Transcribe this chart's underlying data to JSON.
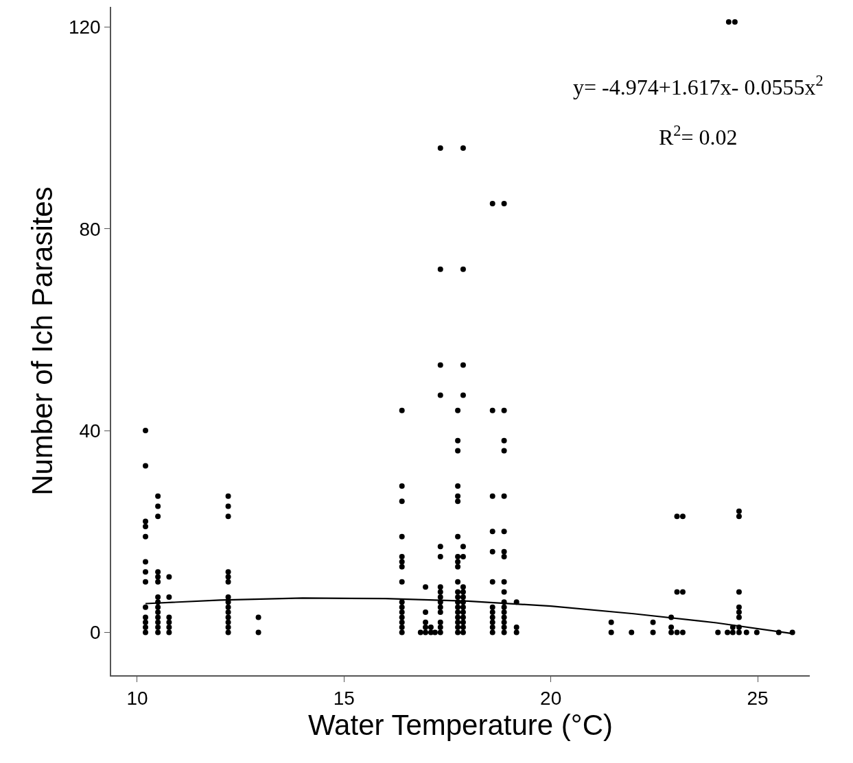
{
  "chart_data": {
    "type": "scatter",
    "xlabel": "Water Temperature (°C)",
    "ylabel": "Number of Ich Parasites",
    "annotations": [
      "y= -4.974+1.617x- 0.0555x$^{2}$",
      "R$^{2}$= 0.02"
    ],
    "xlim": [
      9.37,
      26.26
    ],
    "ylim": [
      -8.5,
      124
    ],
    "xticks": [
      10,
      15,
      20,
      25
    ],
    "yticks": [
      0,
      40,
      80,
      120
    ],
    "series": [
      {
        "color": "#000000",
        "marker": "circle",
        "x": [
          10.2,
          10.2,
          10.2,
          10.2,
          10.2,
          10.2,
          10.2,
          10.2,
          10.2,
          10.2,
          10.2,
          10.2,
          10.2,
          10.5,
          10.5,
          10.5,
          10.5,
          10.5,
          10.5,
          10.5,
          10.5,
          10.5,
          10.5,
          10.5,
          10.5,
          10.5,
          10.5,
          10.77,
          10.77,
          10.77,
          10.77,
          10.77,
          10.77,
          12.2,
          12.2,
          12.2,
          12.2,
          12.2,
          12.2,
          12.2,
          12.2,
          12.2,
          12.2,
          12.2,
          12.2,
          12.2,
          12.2,
          12.93,
          12.93,
          16.4,
          16.4,
          16.4,
          16.4,
          16.4,
          16.4,
          16.4,
          16.4,
          16.4,
          16.4,
          16.4,
          16.4,
          16.4,
          16.4,
          16.4,
          16.85,
          16.97,
          16.97,
          16.97,
          16.97,
          16.97,
          17.1,
          17.1,
          17.2,
          17.33,
          17.33,
          17.33,
          17.33,
          17.33,
          17.33,
          17.33,
          17.33,
          17.33,
          17.33,
          17.33,
          17.33,
          17.33,
          17.33,
          17.33,
          17.75,
          17.75,
          17.75,
          17.75,
          17.75,
          17.75,
          17.75,
          17.75,
          17.75,
          17.75,
          17.75,
          17.75,
          17.75,
          17.75,
          17.75,
          17.75,
          17.75,
          17.75,
          17.75,
          17.75,
          17.88,
          17.88,
          17.88,
          17.88,
          17.88,
          17.88,
          17.88,
          17.88,
          17.88,
          17.88,
          17.88,
          17.88,
          17.88,
          17.88,
          17.88,
          17.88,
          18.59,
          18.59,
          18.59,
          18.59,
          18.59,
          18.59,
          18.59,
          18.59,
          18.59,
          18.59,
          18.59,
          18.59,
          18.87,
          18.87,
          18.87,
          18.87,
          18.87,
          18.87,
          18.87,
          18.87,
          18.87,
          18.87,
          18.87,
          18.87,
          18.87,
          18.87,
          18.87,
          18.87,
          18.87,
          19.17,
          19.17,
          19.17,
          21.46,
          21.46,
          21.95,
          22.47,
          22.47,
          22.91,
          22.91,
          22.91,
          23.05,
          23.05,
          23.05,
          23.19,
          23.19,
          23.19,
          24.04,
          24.27,
          24.3,
          24.45,
          24.4,
          24.4,
          24.55,
          24.55,
          24.55,
          24.55,
          24.55,
          24.55,
          24.55,
          24.55,
          24.73,
          24.98,
          25.51,
          25.84
        ],
        "values": [
          40,
          33,
          22,
          21,
          19,
          14,
          12,
          10,
          5,
          3,
          2,
          1,
          0,
          27,
          25,
          23,
          12,
          11,
          10,
          7,
          6,
          5,
          4,
          3,
          2,
          1,
          0,
          11,
          7,
          3,
          2,
          1,
          0,
          27,
          25,
          23,
          12,
          11,
          10,
          7,
          6,
          5,
          4,
          3,
          2,
          1,
          0,
          3,
          0,
          44,
          29,
          26,
          19,
          15,
          14,
          13,
          10,
          6,
          5,
          4,
          3,
          2,
          1,
          0,
          0,
          9,
          4,
          2,
          1,
          0,
          1,
          0,
          0,
          96,
          72,
          53,
          47,
          17,
          15,
          9,
          8,
          7,
          6,
          5,
          4,
          2,
          1,
          0,
          44,
          38,
          36,
          29,
          27,
          26,
          19,
          15,
          14,
          13,
          10,
          8,
          7,
          6,
          5,
          4,
          3,
          2,
          1,
          0,
          96,
          72,
          53,
          47,
          17,
          15,
          9,
          8,
          7,
          6,
          5,
          4,
          3,
          2,
          1,
          0,
          85,
          44,
          27,
          20,
          16,
          10,
          5,
          4,
          3,
          2,
          1,
          0,
          85,
          44,
          38,
          36,
          27,
          20,
          16,
          15,
          10,
          8,
          6,
          5,
          4,
          3,
          2,
          1,
          0,
          6,
          1,
          0,
          2,
          0,
          0,
          2,
          0,
          3,
          1,
          0,
          23,
          8,
          0,
          23,
          8,
          0,
          0,
          0,
          121,
          121,
          1,
          0,
          24,
          23,
          8,
          5,
          4,
          3,
          1,
          0,
          0,
          0,
          0,
          0
        ]
      },
      {
        "type": "line",
        "color": "#000000",
        "line_style": "solid",
        "x": [
          10.2,
          12,
          14,
          16,
          18,
          20,
          22,
          24,
          25.8
        ],
        "values": [
          5.7,
          6.4,
          6.8,
          6.7,
          6.2,
          5.2,
          3.7,
          1.9,
          -0.2
        ]
      }
    ]
  }
}
